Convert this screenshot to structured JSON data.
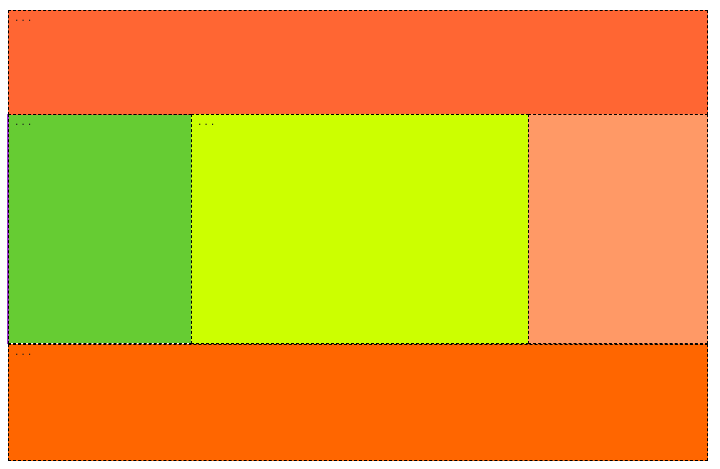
{
  "canvas": {
    "background": "#ffffff",
    "border_color": "#000000"
  },
  "blocks": {
    "header": {
      "color": "#ff6633",
      "content": "..."
    },
    "nav": {
      "color": "#66cc33",
      "content": "..."
    },
    "main": {
      "color": "#ccff00",
      "content": "..."
    },
    "aside": {
      "color": "#ff9966",
      "content": ""
    },
    "footer": {
      "color": "#ff6600",
      "content": "..."
    }
  },
  "accent_line": {
    "color": "#9933cc"
  }
}
